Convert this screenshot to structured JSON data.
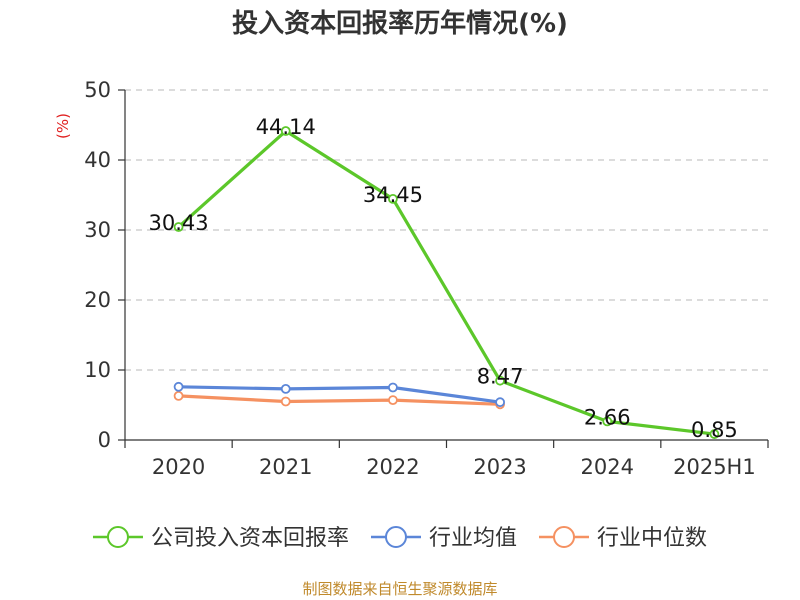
{
  "chart_data": {
    "type": "line",
    "title": "投入资本回报率历年情况(%)",
    "unit": "(%)",
    "categories": [
      "2020",
      "2021",
      "2022",
      "2023",
      "2024",
      "2025H1"
    ],
    "ylim": [
      0,
      50
    ],
    "yticks": [
      0,
      10,
      20,
      30,
      40,
      50
    ],
    "grid": true,
    "legend_position": "bottom",
    "series": [
      {
        "name": "公司投入资本回报率",
        "color": "#5cc72a",
        "values": [
          30.43,
          44.14,
          34.45,
          8.47,
          2.66,
          0.85
        ],
        "labels": [
          "30.43",
          "44.14",
          "34.45",
          "8.47",
          "2.66",
          "0.85"
        ],
        "show_labels": true
      },
      {
        "name": "行业均值",
        "color": "#5b86d8",
        "values": [
          7.6,
          7.3,
          7.5,
          5.4,
          null,
          null
        ],
        "show_labels": false
      },
      {
        "name": "行业中位数",
        "color": "#f59161",
        "values": [
          6.3,
          5.5,
          5.7,
          5.1,
          null,
          null
        ],
        "show_labels": false
      }
    ],
    "source": "制图数据来自恒生聚源数据库"
  }
}
